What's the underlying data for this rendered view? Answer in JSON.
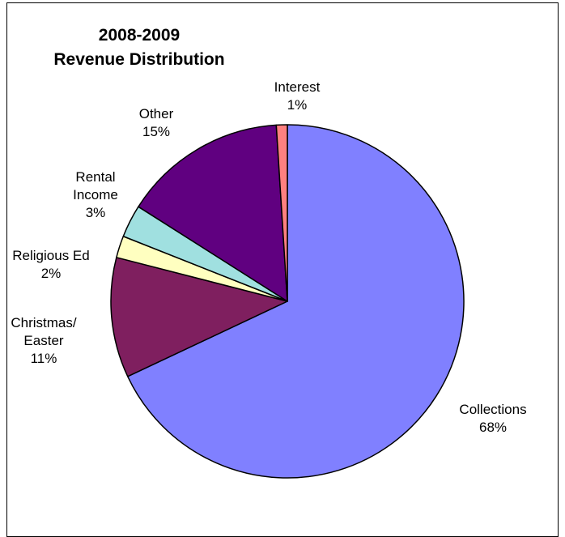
{
  "chart_data": {
    "type": "pie",
    "title_lines": [
      "2008-2009",
      "Revenue  Distribution"
    ],
    "slices": [
      {
        "label_lines": [
          "Collections",
          "68%"
        ],
        "value": 68,
        "color": "#8080FF"
      },
      {
        "label_lines": [
          "Christmas/",
          "Easter",
          "11%"
        ],
        "value": 11,
        "color": "#7F1F5F"
      },
      {
        "label_lines": [
          "Religious Ed",
          "2%"
        ],
        "value": 2,
        "color": "#FFFFC0"
      },
      {
        "label_lines": [
          "Rental",
          "Income",
          "3%"
        ],
        "value": 3,
        "color": "#A0E0E0"
      },
      {
        "label_lines": [
          "Other",
          "15%"
        ],
        "value": 15,
        "color": "#600080"
      },
      {
        "label_lines": [
          "Interest",
          "1%"
        ],
        "value": 1,
        "color": "#FF8080"
      }
    ],
    "start": "top",
    "direction": "clockwise",
    "legend": "none"
  }
}
